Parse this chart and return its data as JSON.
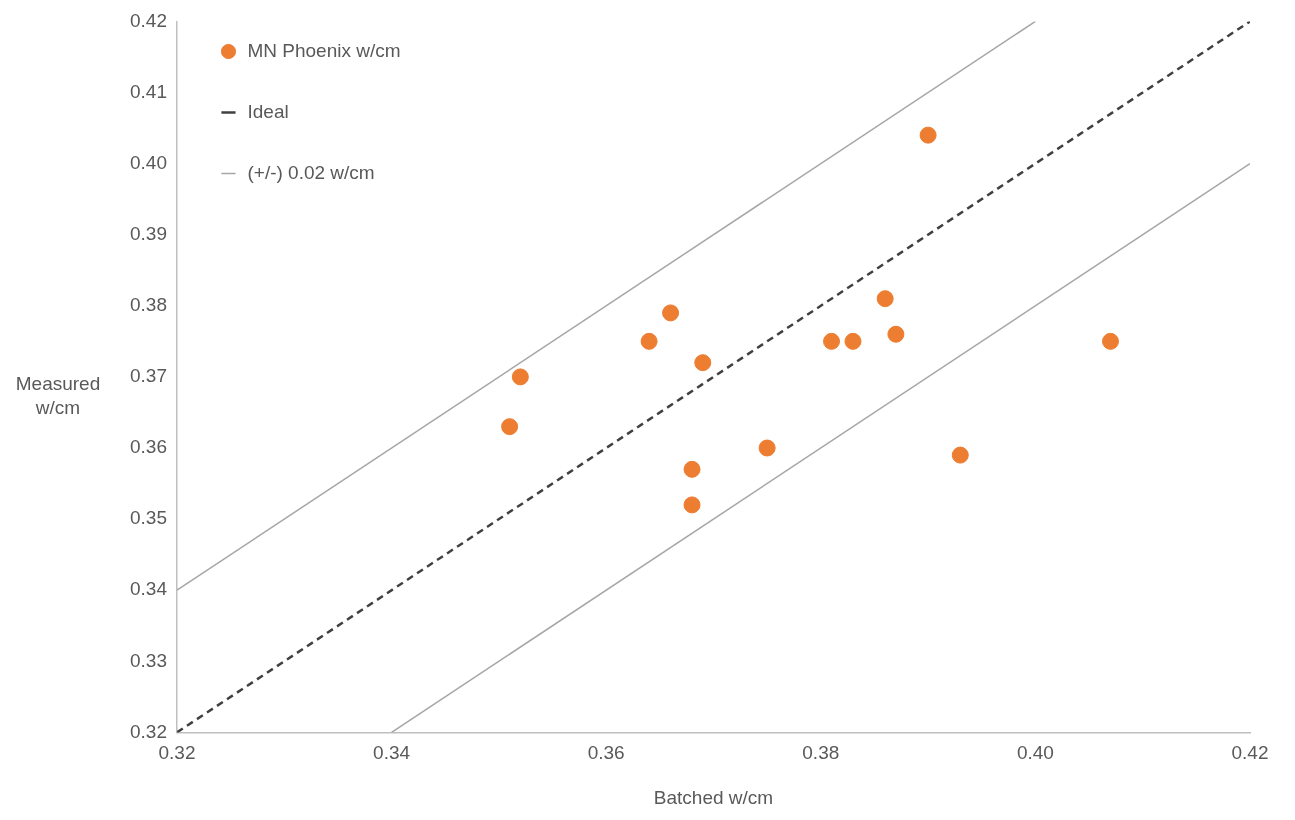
{
  "chart_data": {
    "type": "scatter",
    "xlabel": "Batched w/cm",
    "ylabel": "Measured w/cm",
    "xlim": [
      0.32,
      0.42
    ],
    "ylim": [
      0.32,
      0.42
    ],
    "xticks": [
      {
        "value": 0.32,
        "label": "0.32"
      },
      {
        "value": 0.34,
        "label": "0.34"
      },
      {
        "value": 0.36,
        "label": "0.36"
      },
      {
        "value": 0.38,
        "label": "0.38"
      },
      {
        "value": 0.4,
        "label": "0.40"
      },
      {
        "value": 0.42,
        "label": "0.42"
      }
    ],
    "yticks": [
      {
        "value": 0.32,
        "label": "0.32"
      },
      {
        "value": 0.33,
        "label": "0.33"
      },
      {
        "value": 0.34,
        "label": "0.34"
      },
      {
        "value": 0.35,
        "label": "0.35"
      },
      {
        "value": 0.36,
        "label": "0.36"
      },
      {
        "value": 0.37,
        "label": "0.37"
      },
      {
        "value": 0.38,
        "label": "0.38"
      },
      {
        "value": 0.39,
        "label": "0.39"
      },
      {
        "value": 0.4,
        "label": "0.40"
      },
      {
        "value": 0.41,
        "label": "0.41"
      },
      {
        "value": 0.42,
        "label": "0.42"
      }
    ],
    "grid": false,
    "legend": "top left",
    "marker": "circle",
    "series": [
      {
        "name": "MN Phoenix w/cm",
        "color": "#ed7d31",
        "x": [
          0.39,
          0.351,
          0.352,
          0.364,
          0.366,
          0.369,
          0.368,
          0.368,
          0.375,
          0.381,
          0.383,
          0.386,
          0.387,
          0.393,
          0.407
        ],
        "values": [
          0.404,
          0.363,
          0.37,
          0.375,
          0.379,
          0.372,
          0.357,
          0.352,
          0.36,
          0.375,
          0.375,
          0.381,
          0.376,
          0.359,
          0.375
        ]
      },
      {
        "name": "Ideal",
        "type": "line",
        "color": "#404040",
        "line_style": "dashed",
        "marker": "none",
        "x": [
          0.32,
          0.42
        ],
        "values": [
          0.32,
          0.42
        ]
      },
      {
        "name": "(+/-) 0.02 w/cm",
        "type": "line",
        "color": "#a6a6a6",
        "line_style": "solid",
        "marker": "none",
        "x": [
          0.32,
          0.4
        ],
        "values": [
          0.34,
          0.42
        ]
      },
      {
        "type": "line",
        "color": "#a6a6a6",
        "line_style": "solid",
        "marker": "none",
        "x": [
          0.34,
          0.42
        ],
        "values": [
          0.32,
          0.4
        ]
      }
    ]
  }
}
